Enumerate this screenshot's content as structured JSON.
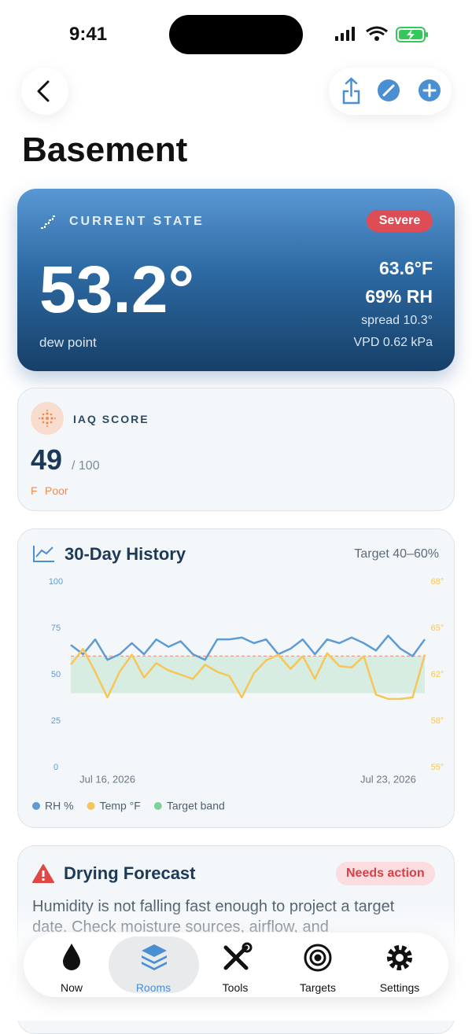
{
  "status_bar": {
    "time": "9:41"
  },
  "header": {
    "title": "Basement"
  },
  "current_state": {
    "label": "CURRENT STATE",
    "badge": "Severe",
    "dew_point": "53.2°",
    "dew_point_label": "dew point",
    "temperature": "63.6°F",
    "humidity": "69% RH",
    "spread": "spread 10.3°",
    "vpd": "VPD 0.62 kPa"
  },
  "iaq": {
    "label": "IAQ SCORE",
    "score": "49",
    "max": "/ 100",
    "grade": "F",
    "rating": "Poor"
  },
  "chart_data": {
    "type": "line",
    "title": "30-Day History",
    "subtitle": "Target 40–60%",
    "categories": [
      null,
      null,
      null,
      "Jul 16, 2026",
      null,
      null,
      null,
      null,
      null,
      null,
      null,
      null,
      null,
      null,
      null,
      null,
      null,
      null,
      null,
      null,
      null,
      null,
      null,
      null,
      null,
      null,
      "Jul 23, 2026",
      null,
      null,
      null
    ],
    "series": [
      {
        "name": "RH %",
        "color": "#5e9bd3",
        "values": [
          66,
          61,
          69,
          58,
          61,
          67,
          61,
          69,
          65,
          68,
          61,
          58,
          69,
          69,
          70,
          67,
          69,
          61,
          64,
          69,
          61,
          69,
          67,
          70,
          67,
          63,
          71,
          64,
          60,
          69
        ]
      },
      {
        "name": "Temp °F",
        "color": "#f6c658",
        "axis": "y2",
        "values": [
          62.2,
          63.3,
          61.7,
          59.9,
          61.7,
          62.9,
          61.3,
          62.3,
          61.8,
          61.5,
          61.2,
          62.2,
          61.7,
          61.4,
          59.9,
          61.6,
          62.5,
          62.9,
          61.9,
          62.8,
          61.2,
          63.0,
          62.1,
          62.0,
          62.8,
          60.1,
          59.8,
          59.8,
          59.9,
          62.9
        ]
      }
    ],
    "target_band": [
      40,
      60
    ],
    "target_band_name": "Target band",
    "target_band_color": "#7fd19b",
    "ylim": [
      0,
      100
    ],
    "yticks": [
      0,
      25,
      50,
      75,
      100
    ],
    "y2lim": [
      55,
      68
    ],
    "y2ticks": [
      {
        "value": 55,
        "label": "55°"
      },
      {
        "value": 58.25,
        "label": "58°"
      },
      {
        "value": 61.5,
        "label": "62°"
      },
      {
        "value": 64.75,
        "label": "65°"
      },
      {
        "value": 68,
        "label": "68°"
      }
    ],
    "grid": false
  },
  "forecast": {
    "title": "Drying Forecast",
    "badge": "Needs action",
    "body": "Humidity is not falling fast enough to project a target date. Check moisture sources, airflow, and"
  },
  "tab_bar": {
    "tabs": [
      "Now",
      "Rooms",
      "Tools",
      "Targets",
      "Settings"
    ]
  }
}
